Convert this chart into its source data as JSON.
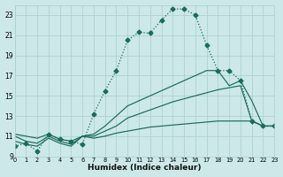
{
  "xlabel": "Humidex (Indice chaleur)",
  "bg_color": "#cce8e8",
  "grid_color": "#aacece",
  "line_color": "#1a6b5a",
  "xlim": [
    0,
    23
  ],
  "ylim": [
    9,
    24
  ],
  "xticks": [
    0,
    1,
    2,
    3,
    4,
    5,
    6,
    7,
    8,
    9,
    10,
    11,
    12,
    13,
    14,
    15,
    16,
    17,
    18,
    19,
    20,
    21,
    22,
    23
  ],
  "yticks": [
    9,
    11,
    13,
    15,
    17,
    19,
    21,
    23
  ],
  "curve1_x": [
    0,
    1,
    2,
    3,
    4,
    5,
    6,
    7,
    8,
    9,
    10,
    11,
    12,
    13,
    14,
    15,
    16,
    17,
    18,
    19,
    20,
    21,
    22,
    23
  ],
  "curve1_y": [
    10.0,
    10.3,
    9.5,
    11.2,
    10.7,
    10.5,
    10.2,
    13.2,
    15.5,
    17.5,
    20.5,
    21.3,
    21.2,
    22.5,
    23.6,
    23.6,
    23.0,
    20.0,
    17.5,
    17.5,
    16.5,
    12.5,
    12.0,
    12.0
  ],
  "curve2_x": [
    0,
    1,
    2,
    3,
    4,
    5,
    6,
    7,
    8,
    9,
    10,
    11,
    12,
    13,
    14,
    15,
    16,
    17,
    18,
    19,
    20,
    21,
    22,
    23
  ],
  "curve2_y": [
    11.2,
    11.0,
    10.8,
    11.2,
    10.7,
    10.5,
    11.0,
    11.2,
    12.0,
    13.0,
    14.0,
    14.5,
    15.0,
    15.5,
    16.0,
    16.5,
    17.0,
    17.5,
    17.5,
    16.0,
    16.5,
    14.5,
    12.0,
    12.0
  ],
  "curve3_x": [
    0,
    1,
    2,
    3,
    4,
    5,
    6,
    7,
    8,
    9,
    10,
    11,
    12,
    13,
    14,
    15,
    16,
    17,
    18,
    19,
    20,
    21,
    22,
    23
  ],
  "curve3_y": [
    11.0,
    10.5,
    10.3,
    11.0,
    10.5,
    10.2,
    11.0,
    11.0,
    11.5,
    12.0,
    12.8,
    13.2,
    13.6,
    14.0,
    14.4,
    14.7,
    15.0,
    15.3,
    15.6,
    15.8,
    16.0,
    12.5,
    12.0,
    12.0
  ],
  "curve4_x": [
    0,
    1,
    2,
    3,
    4,
    5,
    6,
    7,
    8,
    9,
    10,
    11,
    12,
    13,
    14,
    15,
    16,
    17,
    18,
    19,
    20,
    21,
    22,
    23
  ],
  "curve4_y": [
    10.5,
    10.2,
    10.0,
    10.8,
    10.3,
    10.0,
    11.0,
    10.8,
    11.0,
    11.3,
    11.5,
    11.7,
    11.9,
    12.0,
    12.1,
    12.2,
    12.3,
    12.4,
    12.5,
    12.5,
    12.5,
    12.5,
    12.0,
    12.0
  ]
}
